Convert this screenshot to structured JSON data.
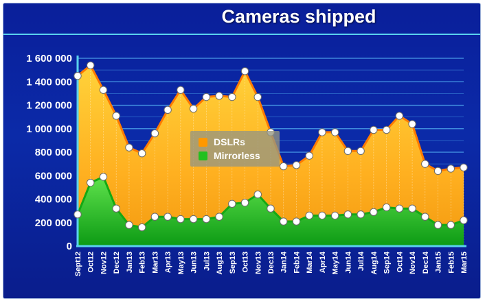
{
  "chart_data": {
    "type": "area",
    "title": "Cameras shipped",
    "xlabel": "",
    "ylabel": "",
    "ylim": [
      0,
      1600000
    ],
    "yticks": [
      "0",
      "200 000",
      "400 000",
      "600 000",
      "800 000",
      "1 000 000",
      "1 200 000",
      "1 400 000",
      "1 600 000"
    ],
    "ytick_values": [
      0,
      200000,
      400000,
      600000,
      800000,
      1000000,
      1200000,
      1400000,
      1600000
    ],
    "grid": true,
    "legend_position": "center",
    "categories": [
      "Sept12",
      "Oct12",
      "Nov12",
      "Dec12",
      "Jan13",
      "Feb13",
      "Mar13",
      "Apr13",
      "May13",
      "Jun13",
      "Jul13",
      "Aug13",
      "Sep13",
      "Oct13",
      "Nov13",
      "Dec13",
      "Jan14",
      "Feb14",
      "Mar14",
      "Apr14",
      "May14",
      "Jun14",
      "Jul14",
      "Aug14",
      "Sep14",
      "Oct14",
      "Nov14",
      "Dec14",
      "Jan15",
      "Feb15",
      "Mar15"
    ],
    "series": [
      {
        "name": "DSLRs",
        "color": "#ff9800",
        "values": [
          1450000,
          1540000,
          1330000,
          1110000,
          840000,
          790000,
          960000,
          1160000,
          1330000,
          1170000,
          1270000,
          1280000,
          1270000,
          1490000,
          1270000,
          970000,
          680000,
          690000,
          770000,
          970000,
          970000,
          810000,
          810000,
          990000,
          990000,
          1110000,
          1040000,
          700000,
          640000,
          660000,
          670000
        ]
      },
      {
        "name": "Mirrorless",
        "color": "#22c01e",
        "values": [
          270000,
          540000,
          590000,
          320000,
          180000,
          160000,
          250000,
          250000,
          230000,
          230000,
          230000,
          250000,
          360000,
          370000,
          440000,
          320000,
          210000,
          210000,
          260000,
          260000,
          260000,
          270000,
          270000,
          290000,
          330000,
          320000,
          320000,
          250000,
          180000,
          180000,
          220000
        ]
      }
    ]
  },
  "colors": {
    "background": "#0b2aa8",
    "accent_line": "#59d2ee",
    "gridline": "#4fa8ee"
  }
}
